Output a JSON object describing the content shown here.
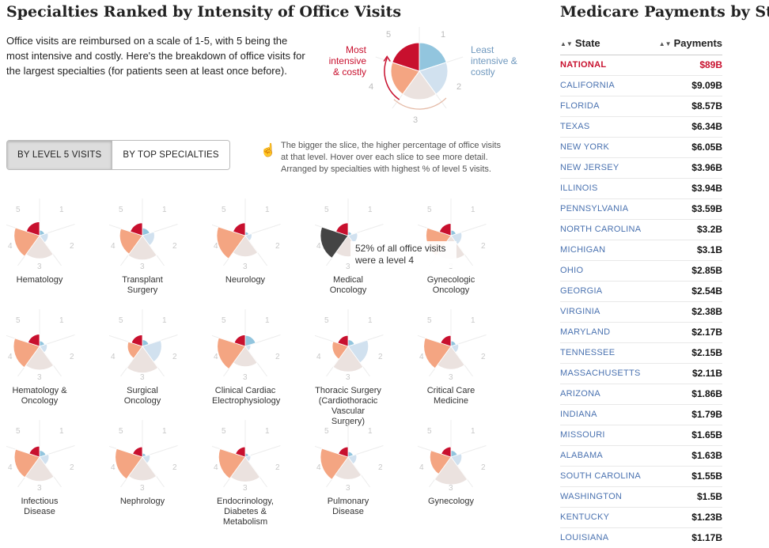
{
  "title": "Specialties Ranked by Intensity of Office Visits",
  "intro": "Office visits are reimbursed on a scale of 1-5, with 5 being the most intensive and costly. Here's the breakdown of office visits for the largest specialties (for patients seen at least once before).",
  "legend": {
    "most": "Most intensive & costly",
    "least": "Least intensive & costly",
    "ticks": [
      "5",
      "1",
      "2",
      "3",
      "4"
    ]
  },
  "tabs": [
    {
      "label": "BY LEVEL 5 VISITS",
      "active": true
    },
    {
      "label": "BY TOP SPECIALTIES",
      "active": false
    }
  ],
  "instructions": "The bigger the slice, the higher percentage of office visits at that level. Hover over each slice to see more detail. Arranged by specialties with highest % of level 5 visits.",
  "tooltip": "52% of all office visits were a level 4",
  "colors": {
    "level5": "#c8102e",
    "level4": "#f4a582",
    "level3": "#ebe2df",
    "level2": "#d1e1ef",
    "level1": "#92c5de",
    "highlight": "#444444",
    "national": "#c8102e",
    "state_link": "#4a72b0"
  },
  "specialties": [
    {
      "name": "Hematology",
      "levels": {
        "l1": 2,
        "l2": 5,
        "l3": 36,
        "l4": 44,
        "l5": 13
      }
    },
    {
      "name": "Transplant Surgery",
      "levels": {
        "l1": 4,
        "l2": 10,
        "l3": 40,
        "l4": 35,
        "l5": 11
      }
    },
    {
      "name": "Neurology",
      "levels": {
        "l1": 1,
        "l2": 3,
        "l3": 30,
        "l4": 55,
        "l5": 11
      }
    },
    {
      "name": "Medical Oncology",
      "levels": {
        "l1": 1,
        "l2": 6,
        "l3": 30,
        "l4": 52,
        "l5": 11
      }
    },
    {
      "name": "Gynecologic Oncology",
      "levels": {
        "l1": 2,
        "l2": 8,
        "l3": 38,
        "l4": 42,
        "l5": 10
      }
    },
    {
      "name": "Hematology & Oncology",
      "levels": {
        "l1": 2,
        "l2": 4,
        "l3": 38,
        "l4": 46,
        "l5": 10
      }
    },
    {
      "name": "Surgical Oncology",
      "levels": {
        "l1": 3,
        "l2": 25,
        "l3": 48,
        "l4": 15,
        "l5": 9
      }
    },
    {
      "name": "Clinical Cardiac Electrophysiology",
      "levels": {
        "l1": 8,
        "l2": 2,
        "l3": 28,
        "l4": 53,
        "l5": 9
      }
    },
    {
      "name": "Thoracic Surgery (Cardiothoracic Vascular Surgery)",
      "levels": {
        "l1": 3,
        "l2": 28,
        "l3": 44,
        "l4": 17,
        "l5": 8
      }
    },
    {
      "name": "Critical Care Medicine",
      "levels": {
        "l1": 2,
        "l2": 4,
        "l3": 36,
        "l4": 50,
        "l5": 8
      }
    },
    {
      "name": "Infectious Disease",
      "levels": {
        "l1": 3,
        "l2": 6,
        "l3": 40,
        "l4": 43,
        "l5": 8
      }
    },
    {
      "name": "Nephrology",
      "levels": {
        "l1": 1,
        "l2": 4,
        "l3": 38,
        "l4": 50,
        "l5": 7
      }
    },
    {
      "name": "Endocrinology, Diabetes & Metabolism",
      "levels": {
        "l1": 1,
        "l2": 2,
        "l3": 42,
        "l4": 48,
        "l5": 7
      }
    },
    {
      "name": "Pulmonary Disease",
      "levels": {
        "l1": 2,
        "l2": 5,
        "l3": 34,
        "l4": 52,
        "l5": 7
      }
    },
    {
      "name": "Gynecology",
      "levels": {
        "l1": 3,
        "l2": 8,
        "l3": 52,
        "l4": 30,
        "l5": 7
      }
    }
  ],
  "sidebar": {
    "title": "Medicare Payments by State",
    "col_state": "State",
    "col_payments": "Payments",
    "rows": [
      {
        "state": "NATIONAL",
        "payment": "$89B"
      },
      {
        "state": "CALIFORNIA",
        "payment": "$9.09B"
      },
      {
        "state": "FLORIDA",
        "payment": "$8.57B"
      },
      {
        "state": "TEXAS",
        "payment": "$6.34B"
      },
      {
        "state": "NEW YORK",
        "payment": "$6.05B"
      },
      {
        "state": "NEW JERSEY",
        "payment": "$3.96B"
      },
      {
        "state": "ILLINOIS",
        "payment": "$3.94B"
      },
      {
        "state": "PENNSYLVANIA",
        "payment": "$3.59B"
      },
      {
        "state": "NORTH CAROLINA",
        "payment": "$3.2B"
      },
      {
        "state": "MICHIGAN",
        "payment": "$3.1B"
      },
      {
        "state": "OHIO",
        "payment": "$2.85B"
      },
      {
        "state": "GEORGIA",
        "payment": "$2.54B"
      },
      {
        "state": "VIRGINIA",
        "payment": "$2.38B"
      },
      {
        "state": "MARYLAND",
        "payment": "$2.17B"
      },
      {
        "state": "TENNESSEE",
        "payment": "$2.15B"
      },
      {
        "state": "MASSACHUSETTS",
        "payment": "$2.11B"
      },
      {
        "state": "ARIZONA",
        "payment": "$1.86B"
      },
      {
        "state": "INDIANA",
        "payment": "$1.79B"
      },
      {
        "state": "MISSOURI",
        "payment": "$1.65B"
      },
      {
        "state": "ALABAMA",
        "payment": "$1.63B"
      },
      {
        "state": "SOUTH CAROLINA",
        "payment": "$1.55B"
      },
      {
        "state": "WASHINGTON",
        "payment": "$1.5B"
      },
      {
        "state": "KENTUCKY",
        "payment": "$1.23B"
      },
      {
        "state": "LOUISIANA",
        "payment": "$1.17B"
      }
    ]
  }
}
